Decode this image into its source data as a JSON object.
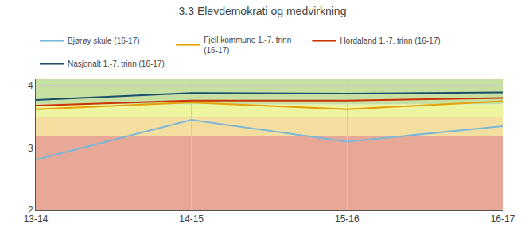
{
  "chart_data": {
    "type": "line",
    "title": "3.3 Elevdemokrati og medvirkning",
    "categories": [
      "13-14",
      "14-15",
      "15-16",
      "16-17"
    ],
    "series": [
      {
        "name": "Bjørøy skule (16-17)",
        "color": "#7ab8d9",
        "values": [
          2.81,
          3.45,
          3.1,
          3.35
        ]
      },
      {
        "name": "Fjell kommune 1.-7. trinn\n(16-17)",
        "color": "#e8a000",
        "values": [
          3.62,
          3.73,
          3.62,
          3.75
        ]
      },
      {
        "name": "Hordaland 1.-7. trinn (16-17)",
        "color": "#cc3300",
        "values": [
          3.68,
          3.76,
          3.76,
          3.8
        ]
      },
      {
        "name": "Nasjonalt 1.-7. trinn (16-17)",
        "color": "#1a4f6e",
        "values": [
          3.77,
          3.88,
          3.87,
          3.89
        ]
      }
    ],
    "bands": [
      {
        "ymin": 2.0,
        "ymax": 3.19,
        "color": "#e8a898"
      },
      {
        "ymin": 3.19,
        "ymax": 3.5,
        "color": "#f5dfa0"
      },
      {
        "ymin": 3.5,
        "ymax": 3.7,
        "color": "#eef5a0"
      },
      {
        "ymin": 3.7,
        "ymax": 4.1,
        "color": "#c5e0a0"
      }
    ],
    "ylim": [
      2.0,
      4.1
    ],
    "yticks": [
      2,
      3,
      4
    ],
    "grid": true,
    "legend": "top"
  }
}
